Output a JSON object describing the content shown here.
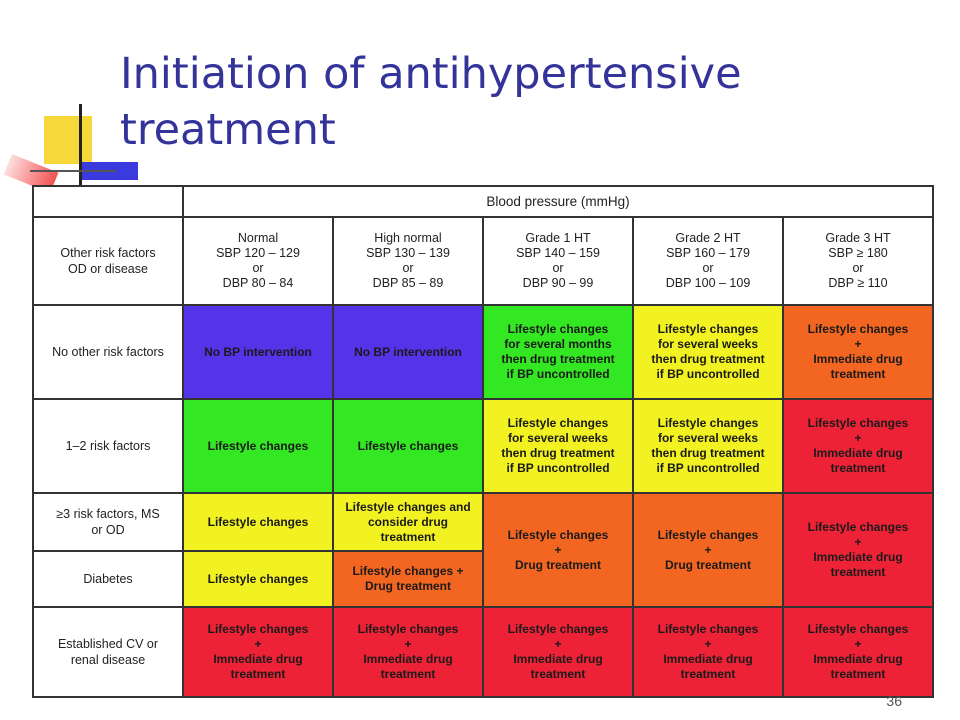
{
  "slide": {
    "title": "Initiation of antihypertensive treatment",
    "page_number": "36"
  },
  "table": {
    "top_header": "Blood pressure (mmHg)",
    "corner_header": "Other risk factors\nOD or disease",
    "columns": [
      {
        "label": "Normal\nSBP 120 – 129\nor\nDBP 80 – 84"
      },
      {
        "label": "High normal\nSBP 130 – 139\nor\nDBP 85 – 89"
      },
      {
        "label": "Grade 1 HT\nSBP 140 – 159\nor\nDBP 90 – 99"
      },
      {
        "label": "Grade 2 HT\nSBP 160 – 179\nor\nDBP 100 – 109"
      },
      {
        "label": "Grade 3 HT\nSBP ≥ 180\nor\nDBP ≥ 110"
      }
    ],
    "rows": [
      {
        "label": "No other risk factors"
      },
      {
        "label": "1–2 risk factors"
      },
      {
        "label": "≥3 risk factors, MS\nor OD"
      },
      {
        "label": "Diabetes"
      },
      {
        "label": "Established CV or\nrenal disease"
      }
    ],
    "cells": {
      "no_intervention": "No BP intervention",
      "lifestyle": "Lifestyle changes",
      "lifestyle_months": "Lifestyle changes\nfor several months\nthen drug treatment\nif BP uncontrolled",
      "lifestyle_weeks": "Lifestyle changes\nfor several weeks\nthen drug treatment\nif BP uncontrolled",
      "lifestyle_immediate": "Lifestyle changes\n+\nImmediate drug\ntreatment",
      "lifestyle_consider": "Lifestyle changes and\nconsider drug\ntreatment",
      "lifestyle_plus_drug": "Lifestyle changes +\nDrug treatment",
      "lifestyle_drug_stacked": "Lifestyle changes\n+\nDrug treatment"
    },
    "colors": {
      "blue": "#5533e8",
      "green": "#33e822",
      "yellow": "#f2f222",
      "orange": "#f26622",
      "red": "#ee2236",
      "title": "#333399"
    }
  }
}
